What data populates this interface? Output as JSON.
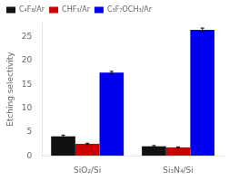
{
  "chart_data": {
    "type": "bar",
    "categories": [
      "SiO₂/Si",
      "Si₃N₄/Si"
    ],
    "series": [
      {
        "name": "C₄F₈/Ar",
        "color": "#111111",
        "values": [
          4.1,
          2.0
        ],
        "errors": [
          0.25,
          0.15
        ]
      },
      {
        "name": "CHF₃/Ar",
        "color": "#cc0000",
        "values": [
          2.5,
          1.75
        ],
        "errors": [
          0.15,
          0.12
        ]
      },
      {
        "name": "C₃F₇OCH₃/Ar",
        "color": "#0000ee",
        "values": [
          17.5,
          26.5
        ],
        "errors": [
          0.25,
          0.35
        ]
      }
    ],
    "ylabel": "Etching selectivity",
    "ylim": [
      0,
      28
    ],
    "yticks": [
      0,
      5,
      10,
      15,
      20,
      25
    ],
    "grid": false,
    "legend": "upper left"
  }
}
